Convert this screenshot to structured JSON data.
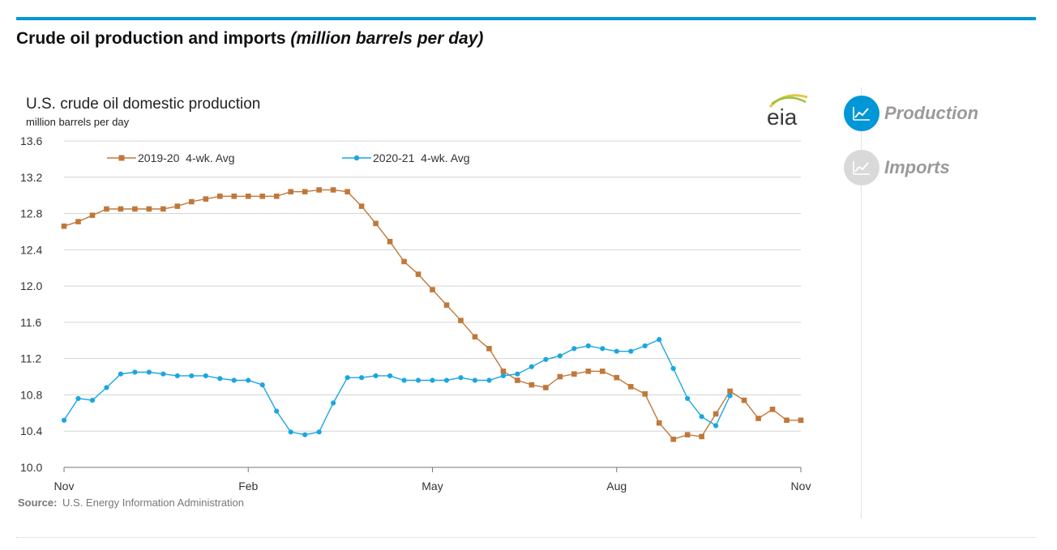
{
  "header": {
    "title": "Crude oil production and imports",
    "unit": "(million barrels per day)"
  },
  "nav": {
    "items": [
      {
        "label": "Production",
        "icon": "line-chart-icon",
        "active": true,
        "color": "#0096d7"
      },
      {
        "label": "Imports",
        "icon": "line-chart-icon",
        "active": false,
        "color": "#d9d9d9"
      }
    ]
  },
  "brand": {
    "logo_text": "eia"
  },
  "source": {
    "label": "Source:",
    "text": "U.S. Energy Information Administration"
  },
  "chart_data": {
    "type": "line",
    "title": "U.S. crude oil domestic production",
    "ylabel": "million barrels per day",
    "ylim": [
      10.0,
      13.6
    ],
    "yticks": [
      "13.6",
      "13.2",
      "12.8",
      "12.4",
      "12.0",
      "11.6",
      "11.2",
      "10.8",
      "10.4",
      "10.0"
    ],
    "xticks": [
      "Nov",
      "Feb",
      "May",
      "Aug",
      "Nov"
    ],
    "xlim": [
      0,
      52
    ],
    "xtick_positions": [
      0,
      13,
      26,
      39,
      52
    ],
    "legend_position": "top",
    "series": [
      {
        "name": "2019-20  4-wk. Avg",
        "color": "#c0783a",
        "marker": "square",
        "values": [
          12.66,
          12.71,
          12.78,
          12.85,
          12.85,
          12.85,
          12.85,
          12.85,
          12.88,
          12.93,
          12.96,
          12.99,
          12.99,
          12.99,
          12.99,
          12.99,
          13.04,
          13.04,
          13.06,
          13.06,
          13.04,
          12.88,
          12.69,
          12.49,
          12.27,
          12.13,
          11.96,
          11.79,
          11.62,
          11.44,
          11.31,
          11.06,
          10.96,
          10.91,
          10.88,
          11.0,
          11.03,
          11.06,
          11.06,
          10.99,
          10.89,
          10.81,
          10.49,
          10.31,
          10.36,
          10.34,
          10.59,
          10.84,
          10.74,
          10.54,
          10.64,
          10.52,
          10.52
        ]
      },
      {
        "name": "2020-21  4-wk. Avg",
        "color": "#1ba6e0",
        "marker": "circle",
        "values": [
          10.52,
          10.76,
          10.74,
          10.88,
          11.03,
          11.05,
          11.05,
          11.03,
          11.01,
          11.01,
          11.01,
          10.98,
          10.96,
          10.96,
          10.91,
          10.62,
          10.39,
          10.36,
          10.39,
          10.71,
          10.99,
          10.99,
          11.01,
          11.01,
          10.96,
          10.96,
          10.96,
          10.96,
          10.99,
          10.96,
          10.96,
          11.01,
          11.03,
          11.11,
          11.19,
          11.23,
          11.31,
          11.34,
          11.31,
          11.28,
          11.28,
          11.34,
          11.41,
          11.09,
          10.76,
          10.56,
          10.46,
          10.79
        ]
      }
    ]
  }
}
